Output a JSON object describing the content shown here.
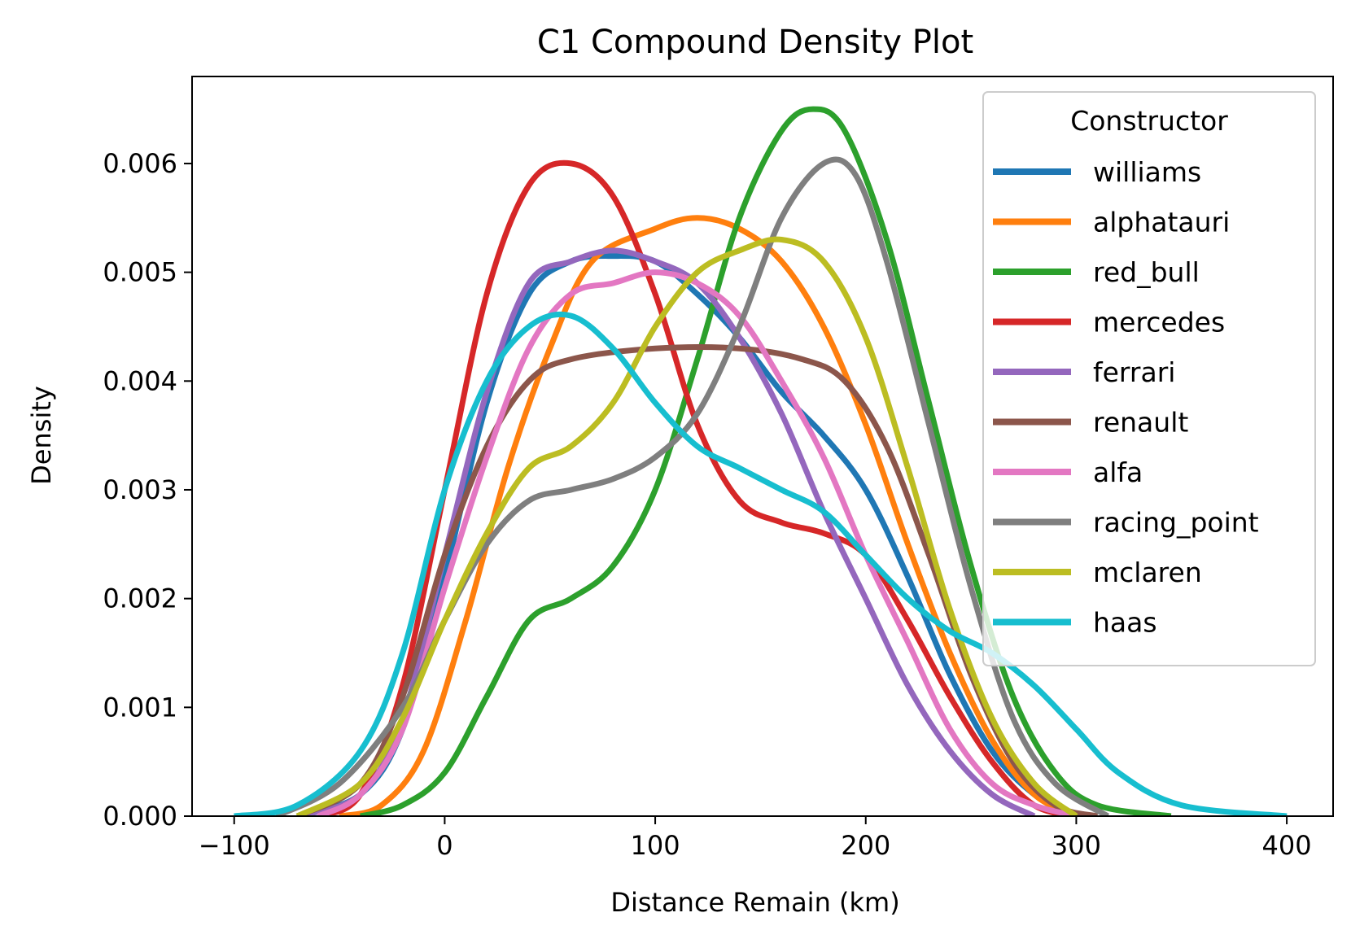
{
  "chart_data": {
    "type": "line",
    "title": "C1 Compound Density Plot",
    "xlabel": "Distance Remain (km)",
    "ylabel": "Density",
    "xlim": [
      -120,
      422
    ],
    "ylim": [
      0,
      0.0068
    ],
    "xticks": [
      -100,
      0,
      100,
      200,
      300,
      400
    ],
    "xtick_labels": [
      "−100",
      "0",
      "100",
      "200",
      "300",
      "400"
    ],
    "yticks": [
      0,
      0.001,
      0.002,
      0.003,
      0.004,
      0.005,
      0.006
    ],
    "ytick_labels": [
      "0.000",
      "0.001",
      "0.002",
      "0.003",
      "0.004",
      "0.005",
      "0.006"
    ],
    "grid": false,
    "legend": {
      "title": "Constructor",
      "placement": "top-right"
    },
    "series": [
      {
        "name": "williams",
        "color": "#1f77b4",
        "points": [
          [
            -70,
            0
          ],
          [
            -40,
            0.0002
          ],
          [
            -20,
            0.0008
          ],
          [
            0,
            0.0022
          ],
          [
            20,
            0.0038
          ],
          [
            40,
            0.0048
          ],
          [
            60,
            0.0051
          ],
          [
            80,
            0.00515
          ],
          [
            100,
            0.0051
          ],
          [
            120,
            0.0048
          ],
          [
            140,
            0.0044
          ],
          [
            160,
            0.0039
          ],
          [
            180,
            0.0035
          ],
          [
            200,
            0.003
          ],
          [
            220,
            0.0022
          ],
          [
            240,
            0.0013
          ],
          [
            260,
            0.0006
          ],
          [
            280,
            0.0002
          ],
          [
            300,
            0
          ]
        ]
      },
      {
        "name": "alphatauri",
        "color": "#ff7f0e",
        "points": [
          [
            -50,
            0
          ],
          [
            -30,
            0.0001
          ],
          [
            -10,
            0.0006
          ],
          [
            10,
            0.0018
          ],
          [
            30,
            0.0032
          ],
          [
            50,
            0.0043
          ],
          [
            70,
            0.0051
          ],
          [
            100,
            0.0054
          ],
          [
            120,
            0.0055
          ],
          [
            140,
            0.0054
          ],
          [
            160,
            0.0051
          ],
          [
            180,
            0.0045
          ],
          [
            200,
            0.0036
          ],
          [
            220,
            0.0025
          ],
          [
            240,
            0.0015
          ],
          [
            260,
            0.0007
          ],
          [
            280,
            0.0002
          ],
          [
            300,
            0
          ]
        ]
      },
      {
        "name": "red_bull",
        "color": "#2ca02c",
        "points": [
          [
            -40,
            0
          ],
          [
            -20,
            0.0001
          ],
          [
            0,
            0.0004
          ],
          [
            20,
            0.0011
          ],
          [
            40,
            0.0018
          ],
          [
            60,
            0.002
          ],
          [
            80,
            0.0023
          ],
          [
            100,
            0.003
          ],
          [
            120,
            0.0042
          ],
          [
            140,
            0.0055
          ],
          [
            160,
            0.0063
          ],
          [
            175,
            0.0065
          ],
          [
            190,
            0.0063
          ],
          [
            210,
            0.0053
          ],
          [
            230,
            0.0038
          ],
          [
            250,
            0.0023
          ],
          [
            270,
            0.0011
          ],
          [
            290,
            0.0004
          ],
          [
            310,
            0.0001
          ],
          [
            345,
            0
          ]
        ]
      },
      {
        "name": "mercedes",
        "color": "#d62728",
        "points": [
          [
            -60,
            0
          ],
          [
            -40,
            0.0002
          ],
          [
            -20,
            0.0012
          ],
          [
            0,
            0.003
          ],
          [
            20,
            0.0048
          ],
          [
            40,
            0.0058
          ],
          [
            60,
            0.006
          ],
          [
            80,
            0.0057
          ],
          [
            100,
            0.0048
          ],
          [
            120,
            0.0036
          ],
          [
            140,
            0.0029
          ],
          [
            160,
            0.0027
          ],
          [
            180,
            0.0026
          ],
          [
            200,
            0.0024
          ],
          [
            220,
            0.0018
          ],
          [
            240,
            0.0011
          ],
          [
            260,
            0.0005
          ],
          [
            280,
            0.0001
          ],
          [
            300,
            0
          ]
        ]
      },
      {
        "name": "ferrari",
        "color": "#9467bd",
        "points": [
          [
            -70,
            0
          ],
          [
            -40,
            0.0002
          ],
          [
            -20,
            0.0009
          ],
          [
            0,
            0.0024
          ],
          [
            20,
            0.0039
          ],
          [
            40,
            0.0049
          ],
          [
            60,
            0.0051
          ],
          [
            80,
            0.0052
          ],
          [
            100,
            0.0051
          ],
          [
            120,
            0.0049
          ],
          [
            140,
            0.0044
          ],
          [
            160,
            0.0037
          ],
          [
            180,
            0.0028
          ],
          [
            200,
            0.002
          ],
          [
            220,
            0.0012
          ],
          [
            240,
            0.0006
          ],
          [
            260,
            0.0002
          ],
          [
            280,
            0
          ]
        ]
      },
      {
        "name": "renault",
        "color": "#8c564b",
        "points": [
          [
            -70,
            0
          ],
          [
            -40,
            0.0003
          ],
          [
            -20,
            0.0011
          ],
          [
            0,
            0.0024
          ],
          [
            20,
            0.0034
          ],
          [
            40,
            0.004
          ],
          [
            60,
            0.0042
          ],
          [
            100,
            0.0043
          ],
          [
            140,
            0.0043
          ],
          [
            170,
            0.0042
          ],
          [
            190,
            0.004
          ],
          [
            210,
            0.0034
          ],
          [
            230,
            0.0024
          ],
          [
            250,
            0.0013
          ],
          [
            270,
            0.0005
          ],
          [
            290,
            0.0001
          ],
          [
            310,
            0
          ]
        ]
      },
      {
        "name": "alfa",
        "color": "#e377c2",
        "points": [
          [
            -60,
            0
          ],
          [
            -40,
            0.0002
          ],
          [
            -20,
            0.0008
          ],
          [
            0,
            0.0021
          ],
          [
            20,
            0.0033
          ],
          [
            40,
            0.0043
          ],
          [
            60,
            0.0048
          ],
          [
            80,
            0.0049
          ],
          [
            100,
            0.005
          ],
          [
            120,
            0.0049
          ],
          [
            140,
            0.0046
          ],
          [
            160,
            0.004
          ],
          [
            180,
            0.0033
          ],
          [
            200,
            0.0024
          ],
          [
            220,
            0.0016
          ],
          [
            240,
            0.0008
          ],
          [
            260,
            0.0003
          ],
          [
            280,
            0.0001
          ],
          [
            300,
            0
          ]
        ]
      },
      {
        "name": "racing_point",
        "color": "#7f7f7f",
        "points": [
          [
            -80,
            0
          ],
          [
            -50,
            0.0003
          ],
          [
            -20,
            0.001
          ],
          [
            0,
            0.0018
          ],
          [
            20,
            0.0025
          ],
          [
            40,
            0.0029
          ],
          [
            60,
            0.003
          ],
          [
            80,
            0.0031
          ],
          [
            100,
            0.0033
          ],
          [
            120,
            0.0037
          ],
          [
            140,
            0.0045
          ],
          [
            160,
            0.0055
          ],
          [
            180,
            0.006
          ],
          [
            195,
            0.0059
          ],
          [
            210,
            0.0051
          ],
          [
            230,
            0.0036
          ],
          [
            250,
            0.0021
          ],
          [
            270,
            0.0009
          ],
          [
            290,
            0.0003
          ],
          [
            315,
            0
          ]
        ]
      },
      {
        "name": "mclaren",
        "color": "#bcbd22",
        "points": [
          [
            -70,
            0
          ],
          [
            -40,
            0.0003
          ],
          [
            -20,
            0.0009
          ],
          [
            0,
            0.0018
          ],
          [
            20,
            0.0026
          ],
          [
            40,
            0.0032
          ],
          [
            60,
            0.0034
          ],
          [
            80,
            0.0038
          ],
          [
            100,
            0.0045
          ],
          [
            120,
            0.005
          ],
          [
            140,
            0.0052
          ],
          [
            160,
            0.0053
          ],
          [
            180,
            0.0051
          ],
          [
            200,
            0.0044
          ],
          [
            220,
            0.0032
          ],
          [
            240,
            0.0019
          ],
          [
            260,
            0.0009
          ],
          [
            280,
            0.0003
          ],
          [
            300,
            0
          ]
        ]
      },
      {
        "name": "haas",
        "color": "#17becf",
        "points": [
          [
            -100,
            0
          ],
          [
            -70,
            0.0001
          ],
          [
            -40,
            0.0006
          ],
          [
            -20,
            0.0015
          ],
          [
            0,
            0.003
          ],
          [
            20,
            0.004
          ],
          [
            40,
            0.0045
          ],
          [
            60,
            0.0046
          ],
          [
            80,
            0.0043
          ],
          [
            100,
            0.0038
          ],
          [
            120,
            0.0034
          ],
          [
            140,
            0.0032
          ],
          [
            160,
            0.003
          ],
          [
            180,
            0.0028
          ],
          [
            200,
            0.0024
          ],
          [
            220,
            0.002
          ],
          [
            240,
            0.0017
          ],
          [
            260,
            0.0015
          ],
          [
            280,
            0.0012
          ],
          [
            300,
            0.0008
          ],
          [
            320,
            0.0004
          ],
          [
            350,
            0.0001
          ],
          [
            400,
            0
          ]
        ]
      }
    ]
  }
}
